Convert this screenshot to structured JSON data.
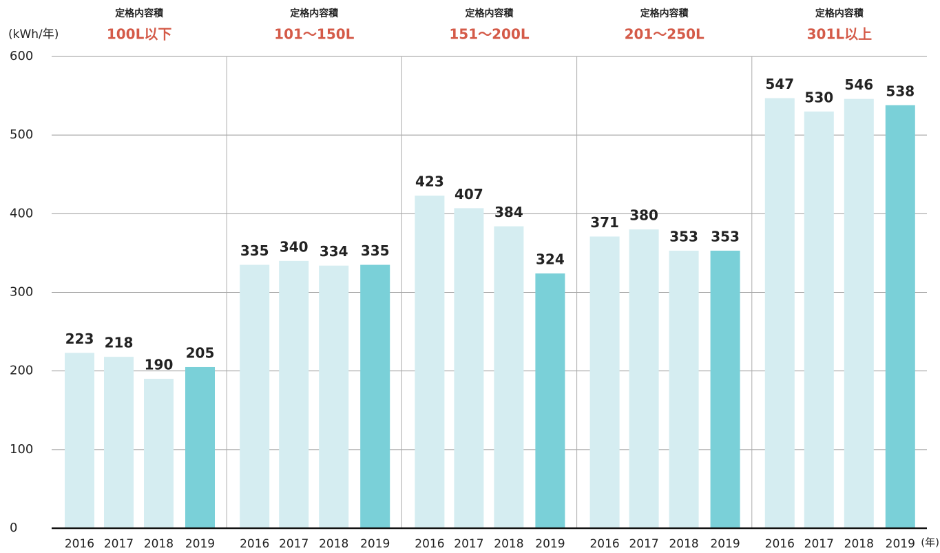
{
  "chart_data": {
    "type": "bar",
    "y_unit": "(kWh/年)",
    "x_unit": "(年)",
    "group_label": "定格内容積",
    "categories": [
      "100L以下",
      "101〜150L",
      "151〜200L",
      "201〜250L",
      "301L以上"
    ],
    "series": [
      {
        "name": "2016",
        "color": "#d5edf1",
        "values": [
          223,
          335,
          423,
          371,
          547
        ]
      },
      {
        "name": "2017",
        "color": "#d5edf1",
        "values": [
          218,
          340,
          407,
          380,
          530
        ]
      },
      {
        "name": "2018",
        "color": "#d5edf1",
        "values": [
          190,
          334,
          384,
          353,
          546
        ]
      },
      {
        "name": "2019",
        "color": "#7ad0d8",
        "values": [
          205,
          335,
          324,
          353,
          538
        ]
      }
    ],
    "ylim": [
      0,
      600
    ],
    "yticks": [
      0,
      100,
      200,
      300,
      400,
      500,
      600
    ],
    "grid": true
  }
}
